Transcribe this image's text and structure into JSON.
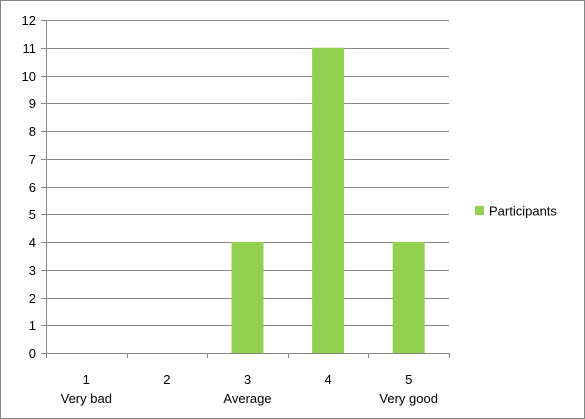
{
  "chart_data": {
    "type": "bar",
    "categories": [
      "1",
      "2",
      "3",
      "4",
      "5"
    ],
    "category_sublabels": [
      "Very bad",
      "",
      "Average",
      "",
      "Very good"
    ],
    "series": [
      {
        "name": "Participants",
        "values": [
          0,
          0,
          4,
          11,
          4
        ],
        "color": "#92d050"
      }
    ],
    "title": "",
    "xlabel": "",
    "ylabel": "",
    "ylim": [
      0,
      12
    ],
    "yticks": [
      "0",
      "1",
      "2",
      "3",
      "4",
      "5",
      "6",
      "7",
      "8",
      "9",
      "10",
      "11",
      "12"
    ],
    "grid": true,
    "legend": "right",
    "colors": {
      "gridline": "#868686",
      "axis": "#868686",
      "frame": "#868686"
    }
  }
}
